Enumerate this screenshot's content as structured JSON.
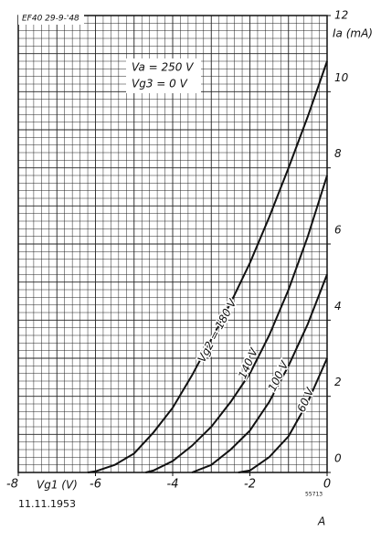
{
  "chart_data": {
    "type": "line",
    "header_note": "EF40 29-9-'48",
    "annotations": [
      "Va = 250 V",
      "Vg3 = 0 V"
    ],
    "ylabel": "Ia (mA)",
    "xlabel": "Vg1 (V)",
    "xlim": [
      -8,
      0
    ],
    "ylim": [
      0,
      12
    ],
    "xticks": [
      -8,
      -6,
      -4,
      -2,
      0
    ],
    "yticks": [
      0,
      2,
      4,
      6,
      8,
      10,
      12
    ],
    "grid": true,
    "series": [
      {
        "name": "Vg2 = 180 V",
        "color": "#111111",
        "x": [
          -6.2,
          -6,
          -5.5,
          -5,
          -4.5,
          -4,
          -3.5,
          -3,
          -2.5,
          -2,
          -1.5,
          -1,
          -0.5,
          0
        ],
        "values": [
          0,
          0.03,
          0.2,
          0.5,
          1.05,
          1.7,
          2.55,
          3.5,
          4.45,
          5.5,
          6.7,
          8.0,
          9.35,
          10.8
        ]
      },
      {
        "name": "140 V",
        "color": "#111111",
        "x": [
          -4.7,
          -4.5,
          -4,
          -3.5,
          -3,
          -2.5,
          -2,
          -1.5,
          -1,
          -0.5,
          0
        ],
        "values": [
          0,
          0.05,
          0.3,
          0.7,
          1.2,
          1.85,
          2.6,
          3.6,
          4.8,
          6.2,
          7.8
        ]
      },
      {
        "name": "100 V",
        "color": "#111111",
        "x": [
          -3.5,
          -3,
          -2.5,
          -2,
          -1.5,
          -1,
          -0.5,
          0
        ],
        "values": [
          0,
          0.2,
          0.6,
          1.1,
          1.85,
          2.8,
          3.9,
          5.2
        ]
      },
      {
        "name": "60 V",
        "color": "#111111",
        "x": [
          -2.3,
          -2,
          -1.5,
          -1,
          -0.5,
          0
        ],
        "values": [
          0,
          0.05,
          0.4,
          0.95,
          1.85,
          3.0
        ]
      }
    ],
    "footer_date": "11.11.1953",
    "footer_code": "55713",
    "footer_letter": "A"
  }
}
